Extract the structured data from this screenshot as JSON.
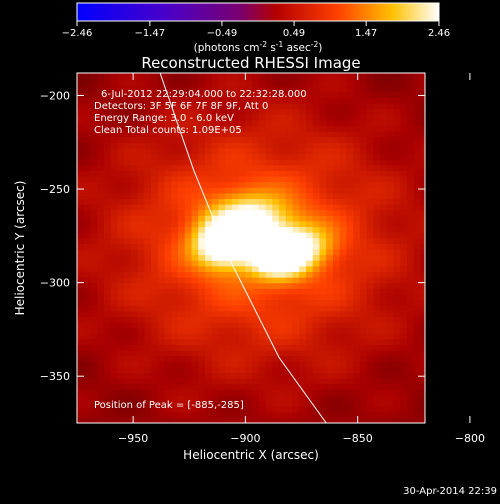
{
  "chart_data": {
    "type": "heatmap",
    "title": "Reconstructed RHESSI Image",
    "colorbar": {
      "ticks": [
        "-2.46",
        "-1.47",
        "-0.49",
        "0.49",
        "1.47",
        "2.46"
      ],
      "range": [
        -2.46,
        2.46
      ],
      "unit_prefix": "(photons cm",
      "unit_exp1": "-2",
      "unit_mid": " s",
      "unit_exp2": "-1",
      "unit_mid2": " asec",
      "unit_exp3": "-2",
      "unit_suffix": ")"
    },
    "xlabel": "Heliocentric X (arcsec)",
    "ylabel": "Heliocentric Y (arcsec)",
    "xlim": [
      -975,
      -820
    ],
    "ylim": [
      -375,
      -188
    ],
    "xticks": [
      -950,
      -900,
      -850,
      -800
    ],
    "yticks": [
      -200,
      -250,
      -300,
      -350
    ],
    "xtick_labels": [
      "−950",
      "−900",
      "−850",
      "−800"
    ],
    "ytick_labels": [
      "−200",
      "−250",
      "−300",
      "−350"
    ],
    "annotations": [
      "6-Jul-2012 22:29:04.000 to 22:32:28.000",
      "Detectors: 3F 5F 6F 7F 8F 9F, Att 0",
      "Energy Range: 3.0 - 6.0 keV",
      "Clean    Total counts: 1.09E+05"
    ],
    "peak_label": "Position of Peak = [-885,-285]",
    "peak": [
      -885,
      -285
    ],
    "sources": [
      {
        "x": -885,
        "y": -285,
        "amp": 2.46,
        "sx": 9,
        "sy": 8
      },
      {
        "x": -910,
        "y": -279,
        "amp": 2.1,
        "sx": 9,
        "sy": 9
      },
      {
        "x": -897,
        "y": -265,
        "amp": 1.4,
        "sx": 12,
        "sy": 9
      },
      {
        "x": -872,
        "y": -279,
        "amp": 0.9,
        "sx": 9,
        "sy": 8
      },
      {
        "x": -895,
        "y": -278,
        "amp": 0.9,
        "sx": 45,
        "sy": 45
      }
    ],
    "background_level": 0.35,
    "limb_curve": [
      [
        -938,
        -188
      ],
      [
        -923,
        -240
      ],
      [
        -906,
        -290
      ],
      [
        -885,
        -340
      ],
      [
        -864,
        -375
      ]
    ],
    "grid": false
  },
  "timestamp": "30-Apr-2014 22:39"
}
